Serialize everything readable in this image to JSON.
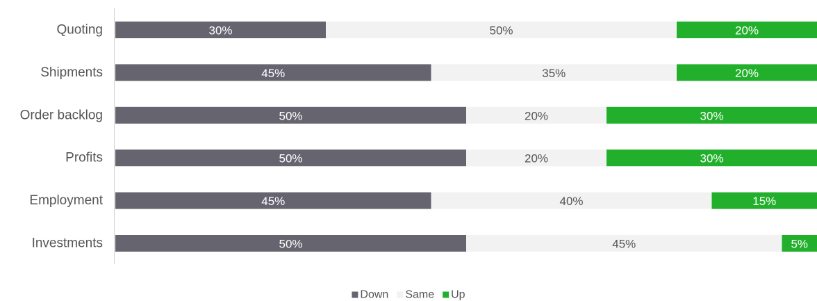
{
  "chart_data": {
    "type": "bar",
    "orientation": "horizontal",
    "stacked": true,
    "percent": true,
    "categories": [
      "Quoting",
      "Shipments",
      "Order backlog",
      "Profits",
      "Employment",
      "Investments"
    ],
    "series": [
      {
        "name": "Down",
        "values": [
          30,
          45,
          50,
          50,
          45,
          50
        ],
        "color": "#66646f",
        "label_color": "#ffffff"
      },
      {
        "name": "Same",
        "values": [
          50,
          35,
          20,
          20,
          40,
          45
        ],
        "color": "#f2f2f2",
        "label_color": "#555555"
      },
      {
        "name": "Up",
        "values": [
          20,
          20,
          30,
          30,
          15,
          5
        ],
        "color": "#22b02c",
        "label_color": "#ffffff"
      }
    ],
    "xlim": [
      0,
      100
    ],
    "value_suffix": "%",
    "grid": false,
    "legend_position": "bottom"
  }
}
